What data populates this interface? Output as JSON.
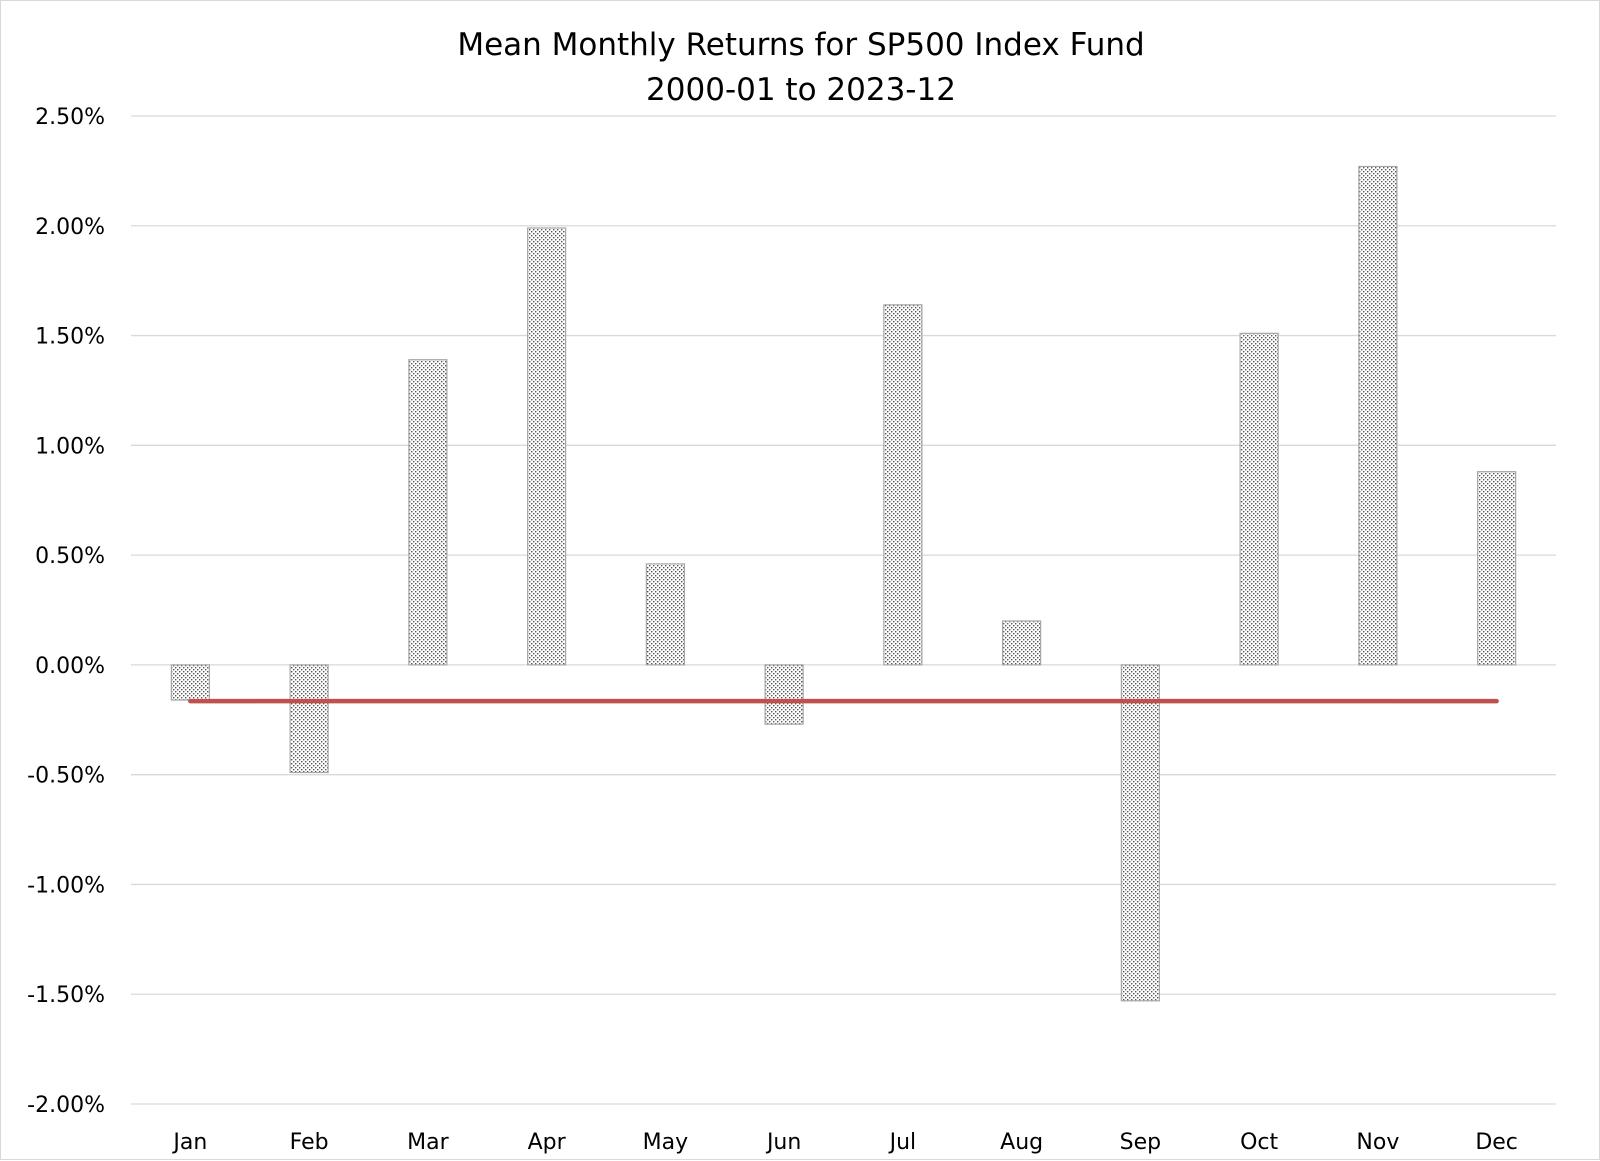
{
  "chart_data": {
    "type": "bar",
    "title": "Mean Monthly Returns for SP500 Index Fund",
    "subtitle": "2000-01 to 2023-12",
    "xlabel": "",
    "ylabel": "",
    "categories": [
      "Jan",
      "Feb",
      "Mar",
      "Apr",
      "May",
      "Jun",
      "Jul",
      "Aug",
      "Sep",
      "Oct",
      "Nov",
      "Dec"
    ],
    "series": [
      {
        "values": [
          -0.16,
          -0.49,
          1.39,
          1.99,
          0.46,
          -0.27,
          1.64,
          0.2,
          -1.53,
          1.51,
          2.27,
          0.88
        ]
      }
    ],
    "reference_line": {
      "value": -0.165,
      "color": "#c0504d"
    },
    "ylim": [
      -2.0,
      2.5
    ],
    "yticks": [
      2.5,
      2.0,
      1.5,
      1.0,
      0.5,
      0.0,
      -0.5,
      -1.0,
      -1.5,
      -2.0
    ],
    "ytick_labels": [
      "2.50%",
      "2.00%",
      "1.50%",
      "1.00%",
      "0.50%",
      "0.00%",
      "-0.50%",
      "-1.00%",
      "-1.50%",
      "-2.00%"
    ],
    "grid": true,
    "legend": "none",
    "bar_fill": "dotted pattern",
    "bar_outline": "#a6a6a6",
    "grid_color": "#d9d9d9"
  }
}
